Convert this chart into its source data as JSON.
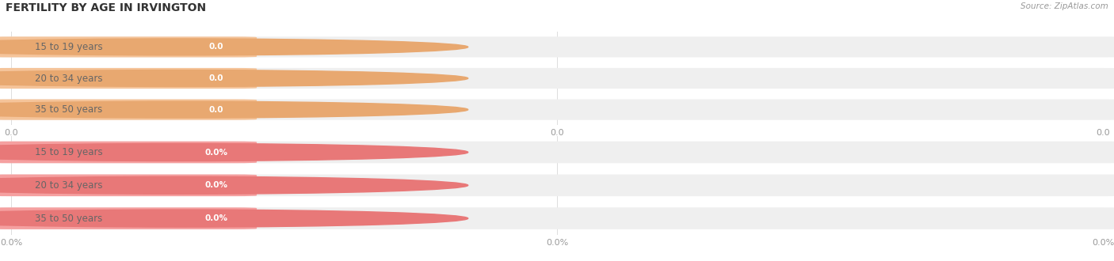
{
  "title": "FERTILITY BY AGE IN IRVINGTON",
  "source": "Source: ZipAtlas.com",
  "top_group": {
    "labels": [
      "15 to 19 years",
      "20 to 34 years",
      "35 to 50 years"
    ],
    "bar_color": "#F5C49A",
    "circle_color": "#E8A870",
    "badge_color": "#E8A870",
    "label_text_color": "#666666",
    "value_str": "0.0"
  },
  "bottom_group": {
    "labels": [
      "15 to 19 years",
      "20 to 34 years",
      "35 to 50 years"
    ],
    "bar_color": "#F5A0A0",
    "circle_color": "#E87878",
    "badge_color": "#E87878",
    "label_text_color": "#666666",
    "value_str": "0.0%"
  },
  "bg_bar_color": "#EFEFEF",
  "separator_color": "#DDDDDD",
  "fig_bg_color": "#FFFFFF",
  "title_fontsize": 10,
  "label_fontsize": 8.5,
  "value_fontsize": 7.5,
  "tick_fontsize": 8,
  "source_fontsize": 7.5,
  "tick_color": "#999999",
  "title_color": "#333333",
  "source_color": "#999999"
}
